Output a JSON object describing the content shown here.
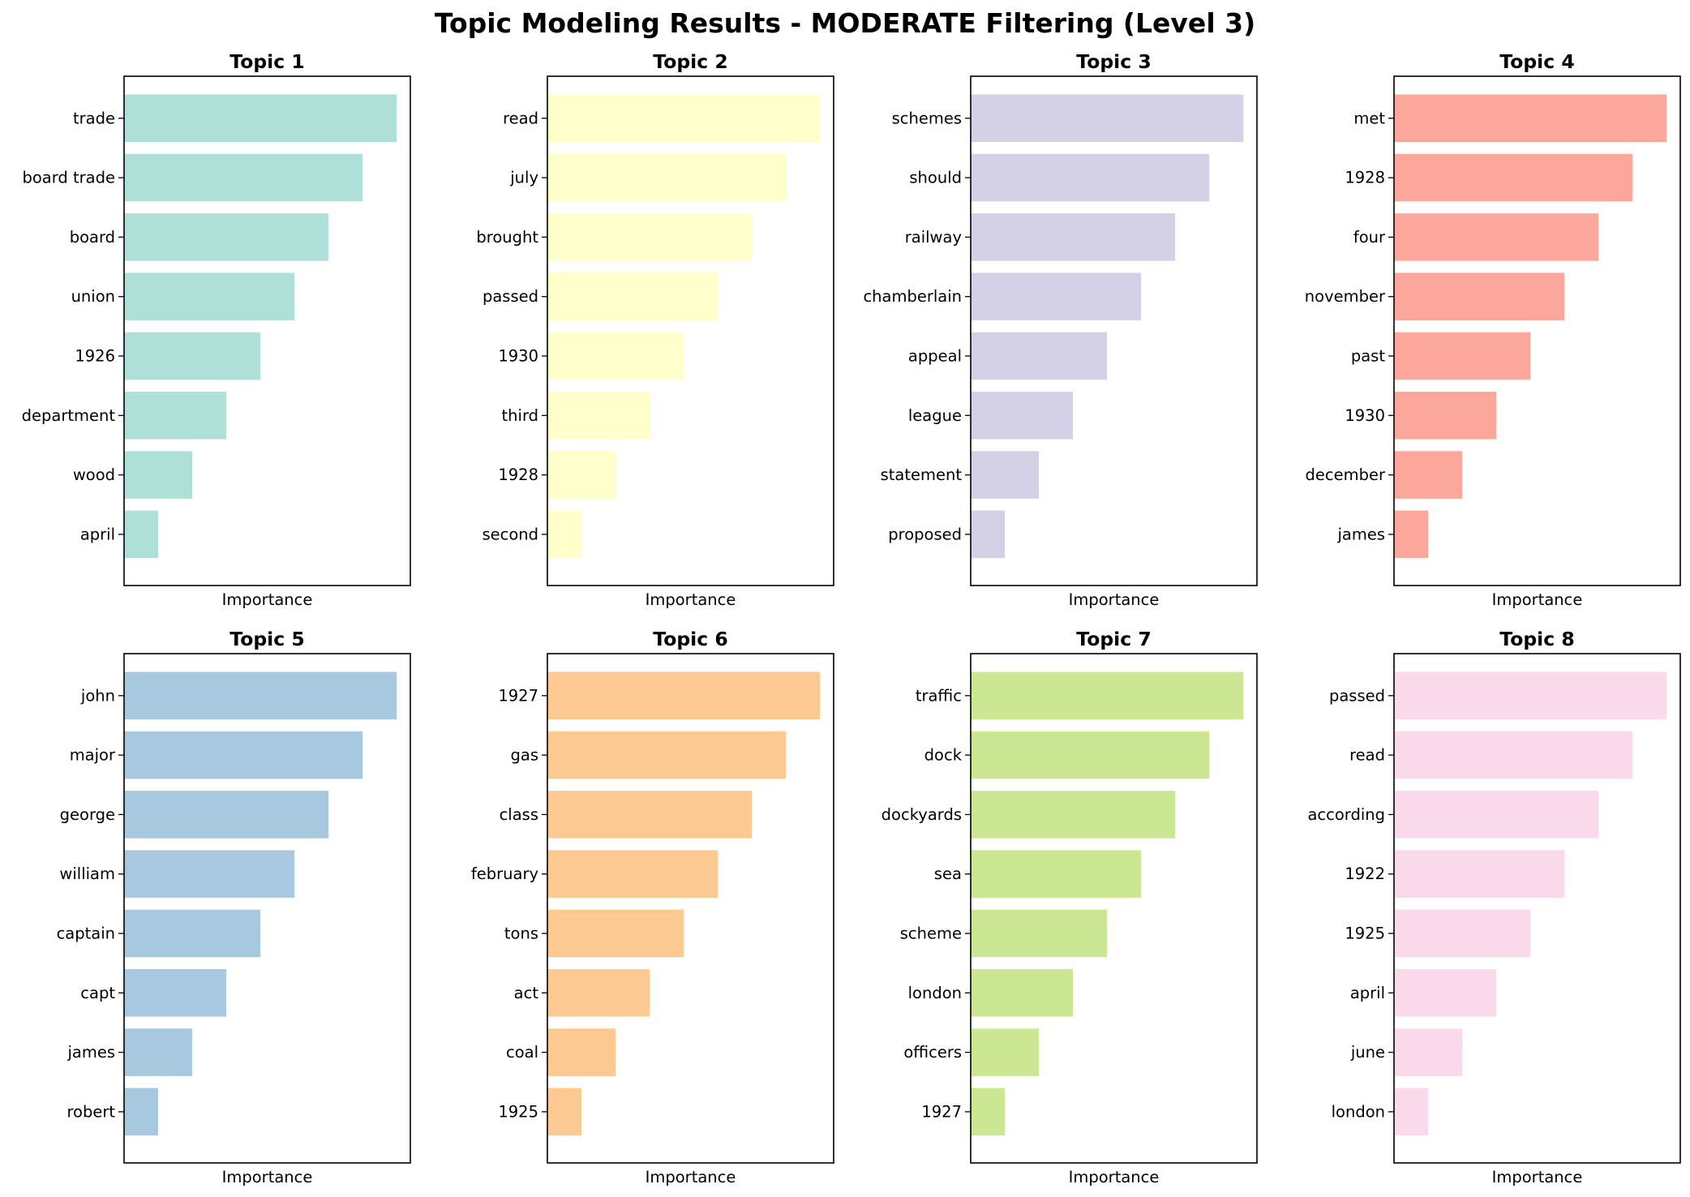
{
  "figure": {
    "title": "Topic Modeling Results - MODERATE Filtering (Level 3)"
  },
  "chart_data": [
    {
      "type": "bar",
      "orientation": "horizontal",
      "title": "Topic 1",
      "xlabel": "Importance",
      "ylabel": "",
      "color": "#aee0d8",
      "categories": [
        "trade",
        "board trade",
        "board",
        "union",
        "1926",
        "department",
        "wood",
        "april"
      ],
      "values": [
        8,
        7,
        6,
        5,
        4,
        3,
        2,
        1
      ],
      "xlim": [
        0,
        8.4
      ],
      "x_ticks_shown": false
    },
    {
      "type": "bar",
      "orientation": "horizontal",
      "title": "Topic 2",
      "xlabel": "Importance",
      "ylabel": "",
      "color": "#ffffcc",
      "categories": [
        "read",
        "july",
        "brought",
        "passed",
        "1930",
        "third",
        "1928",
        "second"
      ],
      "values": [
        8,
        7,
        6,
        5,
        4,
        3,
        2,
        1
      ],
      "xlim": [
        0,
        8.4
      ],
      "x_ticks_shown": false
    },
    {
      "type": "bar",
      "orientation": "horizontal",
      "title": "Topic 3",
      "xlabel": "Importance",
      "ylabel": "",
      "color": "#d4d0e6",
      "categories": [
        "schemes",
        "should",
        "railway",
        "chamberlain",
        "appeal",
        "league",
        "statement",
        "proposed"
      ],
      "values": [
        8,
        7,
        6,
        5,
        4,
        3,
        2,
        1
      ],
      "xlim": [
        0,
        8.4
      ],
      "x_ticks_shown": false
    },
    {
      "type": "bar",
      "orientation": "horizontal",
      "title": "Topic 4",
      "xlabel": "Importance",
      "ylabel": "",
      "color": "#fca79b",
      "categories": [
        "met",
        "1928",
        "four",
        "november",
        "past",
        "1930",
        "december",
        "james"
      ],
      "values": [
        8,
        7,
        6,
        5,
        4,
        3,
        2,
        1
      ],
      "xlim": [
        0,
        8.4
      ],
      "x_ticks_shown": false
    },
    {
      "type": "bar",
      "orientation": "horizontal",
      "title": "Topic 5",
      "xlabel": "Importance",
      "ylabel": "",
      "color": "#a8c8e0",
      "categories": [
        "john",
        "major",
        "george",
        "william",
        "captain",
        "capt",
        "james",
        "robert"
      ],
      "values": [
        8,
        7,
        6,
        5,
        4,
        3,
        2,
        1
      ],
      "xlim": [
        0,
        8.4
      ],
      "x_ticks_shown": false
    },
    {
      "type": "bar",
      "orientation": "horizontal",
      "title": "Topic 6",
      "xlabel": "Importance",
      "ylabel": "",
      "color": "#fdc993",
      "categories": [
        "1927",
        "gas",
        "class",
        "february",
        "tons",
        "act",
        "coal",
        "1925"
      ],
      "values": [
        8,
        7,
        6,
        5,
        4,
        3,
        2,
        1
      ],
      "xlim": [
        0,
        8.4
      ],
      "x_ticks_shown": false
    },
    {
      "type": "bar",
      "orientation": "horizontal",
      "title": "Topic 7",
      "xlabel": "Importance",
      "ylabel": "",
      "color": "#cce793",
      "categories": [
        "traffic",
        "dock",
        "dockyards",
        "sea",
        "scheme",
        "london",
        "officers",
        "1927"
      ],
      "values": [
        8,
        7,
        6,
        5,
        4,
        3,
        2,
        1
      ],
      "xlim": [
        0,
        8.4
      ],
      "x_ticks_shown": false
    },
    {
      "type": "bar",
      "orientation": "horizontal",
      "title": "Topic 8",
      "xlabel": "Importance",
      "ylabel": "",
      "color": "#fad9ea",
      "categories": [
        "passed",
        "read",
        "according",
        "1922",
        "1925",
        "april",
        "june",
        "london"
      ],
      "values": [
        8,
        7,
        6,
        5,
        4,
        3,
        2,
        1
      ],
      "xlim": [
        0,
        8.4
      ],
      "x_ticks_shown": false
    }
  ]
}
